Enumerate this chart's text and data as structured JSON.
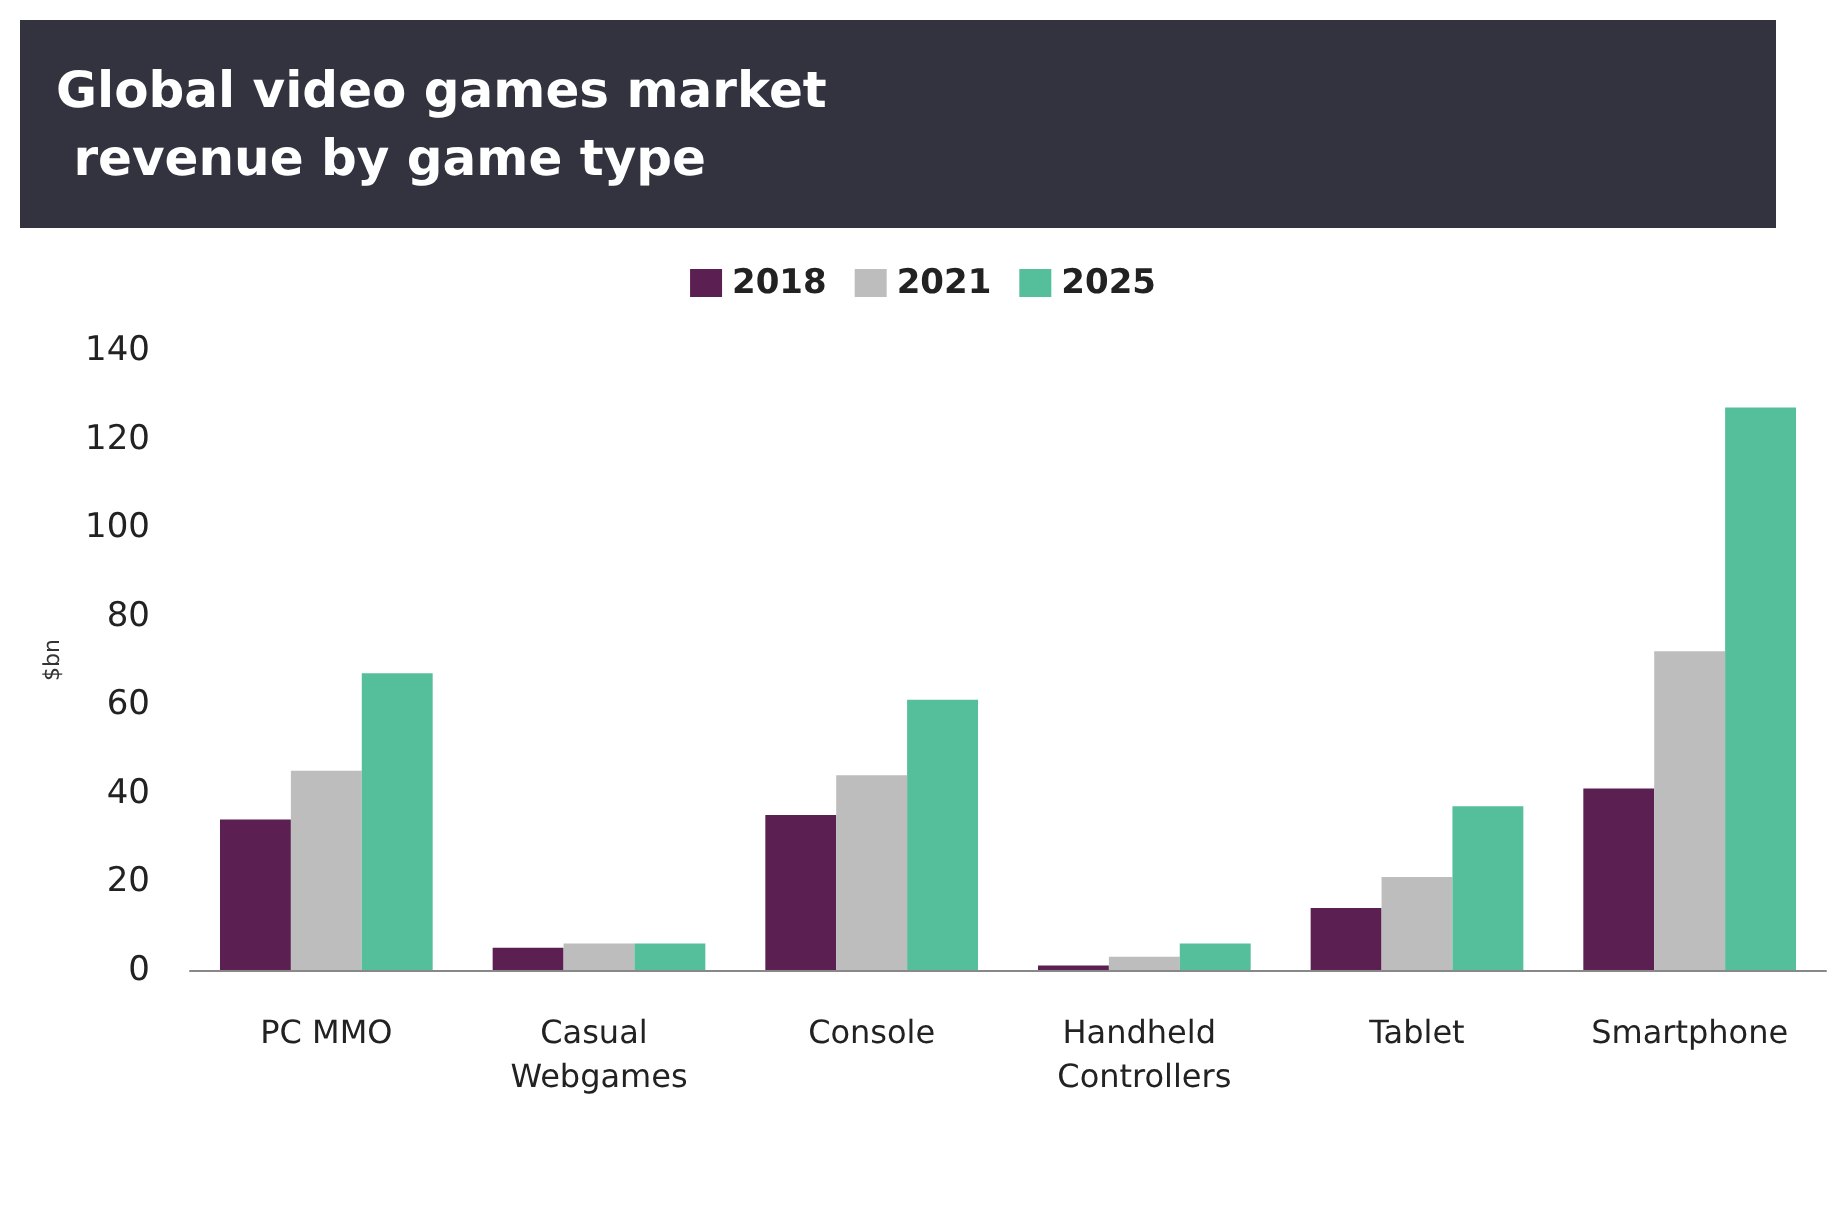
{
  "chart_data": {
    "type": "bar",
    "title": "Global video games market revenue by game type",
    "ylabel": "$bn",
    "categories": [
      "PC MMO",
      "Casual Webgames",
      "Console",
      "Handheld Controllers",
      "Tablet",
      "Smartphone"
    ],
    "series": [
      {
        "name": "2018",
        "color": "#5b1f52",
        "values": [
          34,
          5,
          35,
          1,
          14,
          41
        ]
      },
      {
        "name": "2021",
        "color": "#bdbdbd",
        "values": [
          45,
          6,
          44,
          3,
          21,
          72
        ]
      },
      {
        "name": "2025",
        "color": "#55bf9b",
        "values": [
          67,
          6,
          61,
          6,
          37,
          127
        ]
      }
    ],
    "ylim": [
      0,
      140
    ],
    "yticks": [
      0,
      20,
      40,
      60,
      80,
      100,
      120,
      140
    ],
    "grid": false,
    "legend": "top"
  }
}
